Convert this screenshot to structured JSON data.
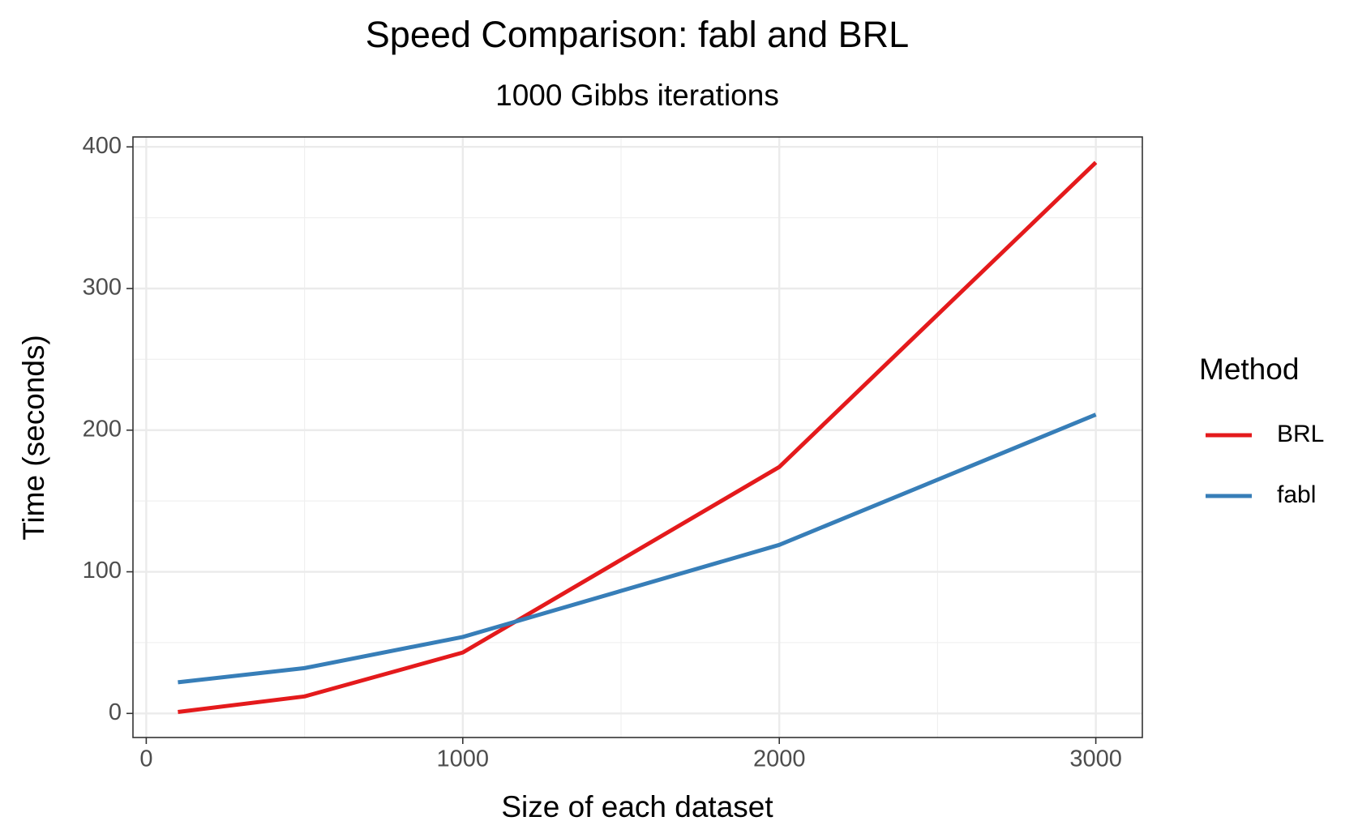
{
  "chart_data": {
    "type": "line",
    "title": "Speed Comparison: fabl and BRL",
    "subtitle": "1000 Gibbs iterations",
    "x_label": "Size of each dataset",
    "y_label": "Time (seconds)",
    "legend_title": "Method",
    "legend_position": "right",
    "x": [
      100,
      500,
      1000,
      2000,
      3000
    ],
    "series": [
      {
        "name": "BRL",
        "color": "#e41a1c",
        "values": [
          1,
          12,
          43,
          174,
          389
        ]
      },
      {
        "name": "fabl",
        "color": "#377eb8",
        "values": [
          22,
          32,
          54,
          119,
          211
        ]
      }
    ],
    "xlim": [
      -42,
      3147
    ],
    "ylim": [
      -17,
      407
    ],
    "xticks": [
      0,
      1000,
      2000,
      3000
    ],
    "yticks": [
      0,
      100,
      200,
      300,
      400
    ],
    "x_minor_ticks": [
      500,
      1500,
      2500
    ],
    "y_minor_ticks": [
      50,
      150,
      250,
      350
    ],
    "grid": true
  }
}
